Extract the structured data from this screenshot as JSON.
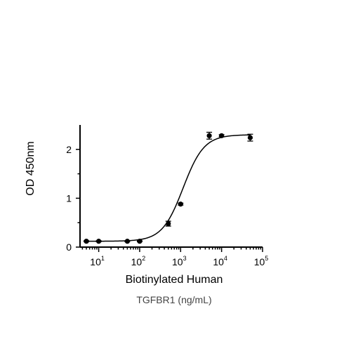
{
  "chart_data": {
    "type": "scatter",
    "title": "",
    "ylabel": "OD 450nm",
    "xlabel_line1": "Biotinylated Human",
    "xlabel_line2": "TGFBR1 (ng/mL)",
    "x_scale": "log",
    "xlim": [
      3.5,
      100000
    ],
    "ylim": [
      0,
      2.5
    ],
    "x_ticks": [
      {
        "base": "10",
        "exp": "1",
        "value": 10
      },
      {
        "base": "10",
        "exp": "2",
        "value": 100
      },
      {
        "base": "10",
        "exp": "3",
        "value": 1000
      },
      {
        "base": "10",
        "exp": "4",
        "value": 10000
      },
      {
        "base": "10",
        "exp": "5",
        "value": 100000
      }
    ],
    "y_ticks": [
      {
        "label": "0",
        "value": 0
      },
      {
        "label": "1",
        "value": 1
      },
      {
        "label": "2",
        "value": 2
      }
    ],
    "grid": false,
    "legend": "none",
    "series": [
      {
        "points": [
          {
            "x": 5,
            "y": 0.12,
            "err": 0.01
          },
          {
            "x": 10,
            "y": 0.12,
            "err": 0.01
          },
          {
            "x": 50,
            "y": 0.12,
            "err": 0.01
          },
          {
            "x": 100,
            "y": 0.12,
            "err": 0.01
          },
          {
            "x": 500,
            "y": 0.48,
            "err": 0.05
          },
          {
            "x": 1000,
            "y": 0.88,
            "err": 0.02
          },
          {
            "x": 5000,
            "y": 2.28,
            "err": 0.07
          },
          {
            "x": 10000,
            "y": 2.28,
            "err": 0.02
          },
          {
            "x": 50000,
            "y": 2.24,
            "err": 0.07
          }
        ],
        "fit": {
          "model": "4PL",
          "bottom": 0.12,
          "top": 2.3,
          "ec50": 1150,
          "hill": 1.7
        }
      }
    ]
  }
}
